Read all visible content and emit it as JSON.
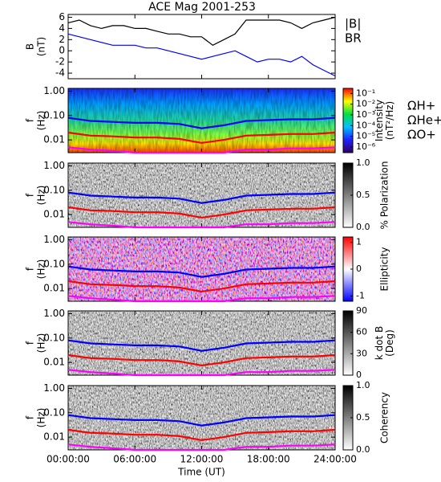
{
  "chart_data": [
    {
      "type": "line",
      "title": "ACE Mag 2001-253",
      "ylabel": [
        "B",
        "(nT)"
      ],
      "x": [
        0,
        1,
        2,
        3,
        4,
        5,
        6,
        7,
        8,
        9,
        10,
        11,
        12,
        13,
        14,
        15,
        16,
        17,
        18,
        19,
        20,
        21,
        22,
        23,
        24
      ],
      "xlim": [
        0,
        24
      ],
      "xticks": [
        0,
        6,
        12,
        18,
        24
      ],
      "ylim": [
        -5,
        6.5
      ],
      "yticks": [
        -4,
        -2,
        0,
        2,
        4,
        6
      ],
      "series": [
        {
          "name": "|B|",
          "color": "#000000",
          "values": [
            5,
            5.5,
            4.5,
            4,
            4.5,
            4.5,
            4,
            4,
            3.5,
            3,
            3,
            2.5,
            2.5,
            1,
            2,
            3,
            5.5,
            5.5,
            5.5,
            5.5,
            5,
            4,
            5,
            5.5,
            6
          ]
        },
        {
          "name": "BR",
          "color": "#0000ff",
          "values": [
            3,
            2.5,
            2,
            1.5,
            1,
            1,
            1,
            0.5,
            0.5,
            0,
            -0.5,
            -1,
            -1.5,
            -1,
            -0.5,
            0,
            -1,
            -2,
            -1.5,
            -1.5,
            -2,
            -1,
            -2.5,
            -3.5,
            -4.5
          ]
        }
      ]
    },
    {
      "type": "spectrogram",
      "ylabel": [
        "f",
        "(Hz)"
      ],
      "ylog": true,
      "x": [
        0,
        2,
        4,
        6,
        8,
        10,
        12,
        14,
        16,
        18,
        20,
        22,
        24
      ],
      "xlim": [
        0,
        24
      ],
      "xticks": [
        0,
        6,
        12,
        18,
        24
      ],
      "ylim": [
        0.003,
        1.3
      ],
      "yticks": [
        {
          "value": 0.01,
          "label": "0.01"
        },
        {
          "value": 0.1,
          "label": "0.10"
        },
        {
          "value": 1,
          "label": "1.00"
        }
      ],
      "colorbar": {
        "label": [
          "Intensity",
          "(nT²/Hz)"
        ],
        "colormap": "rainbow",
        "log": true,
        "clim": [
          3e-07,
          0.3
        ],
        "ticks": [
          {
            "value": 0.1,
            "label": "10⁻¹"
          },
          {
            "value": 0.01,
            "label": "10⁻²"
          },
          {
            "value": 0.001,
            "label": "10⁻³"
          },
          {
            "value": 0.0001,
            "label": "10⁻⁴"
          },
          {
            "value": 1e-05,
            "label": "10⁻⁵"
          },
          {
            "value": 1e-06,
            "label": "10⁻⁶"
          }
        ]
      },
      "series": [
        {
          "name": "ΩH+",
          "color": "#0000ff",
          "values": [
            0.08,
            0.06,
            0.055,
            0.05,
            0.05,
            0.045,
            0.03,
            0.04,
            0.06,
            0.065,
            0.07,
            0.07,
            0.08
          ]
        },
        {
          "name": "ΩHe+",
          "color": "#ff0000",
          "values": [
            0.02,
            0.015,
            0.014,
            0.0125,
            0.0125,
            0.011,
            0.0075,
            0.01,
            0.015,
            0.016,
            0.0175,
            0.0175,
            0.02
          ]
        },
        {
          "name": "ΩO+",
          "color": "#ff00ff",
          "values": [
            0.005,
            0.004,
            0.0035,
            0.003,
            0.003,
            0.003,
            0.003,
            0.003,
            0.004,
            0.004,
            0.0045,
            0.0045,
            0.005
          ]
        }
      ]
    },
    {
      "type": "spectrogram",
      "ylabel": [
        "f",
        "(Hz)"
      ],
      "ylog": true,
      "x": [
        0,
        2,
        4,
        6,
        8,
        10,
        12,
        14,
        16,
        18,
        20,
        22,
        24
      ],
      "xlim": [
        0,
        24
      ],
      "xticks": [
        0,
        6,
        12,
        18,
        24
      ],
      "ylim": [
        0.003,
        1.3
      ],
      "yticks": [
        {
          "value": 0.01,
          "label": "0.01"
        },
        {
          "value": 0.1,
          "label": "0.10"
        },
        {
          "value": 1,
          "label": "1.00"
        }
      ],
      "colorbar": {
        "label": [
          "% Polarization"
        ],
        "colormap": "gray",
        "clim": [
          0,
          1
        ],
        "ticks": [
          {
            "value": 0,
            "label": "0.0"
          },
          0.5,
          {
            "value": 1,
            "label": "1.0"
          }
        ]
      },
      "series": [
        {
          "color": "#0000ff",
          "values": [
            0.08,
            0.06,
            0.055,
            0.05,
            0.05,
            0.045,
            0.03,
            0.04,
            0.06,
            0.065,
            0.07,
            0.07,
            0.08
          ]
        },
        {
          "color": "#ff0000",
          "values": [
            0.02,
            0.015,
            0.014,
            0.0125,
            0.0125,
            0.011,
            0.0075,
            0.01,
            0.015,
            0.016,
            0.0175,
            0.0175,
            0.02
          ]
        },
        {
          "color": "#ff00ff",
          "values": [
            0.005,
            0.004,
            0.0035,
            0.003,
            0.003,
            0.003,
            0.003,
            0.003,
            0.004,
            0.004,
            0.0045,
            0.0045,
            0.005
          ]
        }
      ]
    },
    {
      "type": "spectrogram",
      "ylabel": [
        "f",
        "(Hz)"
      ],
      "ylog": true,
      "x": [
        0,
        2,
        4,
        6,
        8,
        10,
        12,
        14,
        16,
        18,
        20,
        22,
        24
      ],
      "xlim": [
        0,
        24
      ],
      "xticks": [
        0,
        6,
        12,
        18,
        24
      ],
      "ylim": [
        0.003,
        1.3
      ],
      "yticks": [
        {
          "value": 0.01,
          "label": "0.01"
        },
        {
          "value": 0.1,
          "label": "0.10"
        },
        {
          "value": 1,
          "label": "1.00"
        }
      ],
      "colorbar": {
        "label": [
          "Ellipticity"
        ],
        "colormap": "redblue",
        "clim": [
          -1.2,
          1.2
        ],
        "ticks": [
          -1,
          0,
          1
        ]
      },
      "series": [
        {
          "color": "#0000ff",
          "values": [
            0.08,
            0.06,
            0.055,
            0.05,
            0.05,
            0.045,
            0.03,
            0.04,
            0.06,
            0.065,
            0.07,
            0.07,
            0.08
          ]
        },
        {
          "color": "#ff0000",
          "values": [
            0.02,
            0.015,
            0.014,
            0.0125,
            0.0125,
            0.011,
            0.0075,
            0.01,
            0.015,
            0.016,
            0.0175,
            0.0175,
            0.02
          ]
        },
        {
          "color": "#ff00ff",
          "values": [
            0.005,
            0.004,
            0.0035,
            0.003,
            0.003,
            0.003,
            0.003,
            0.003,
            0.004,
            0.004,
            0.0045,
            0.0045,
            0.005
          ]
        }
      ]
    },
    {
      "type": "spectrogram",
      "ylabel": [
        "f",
        "(Hz)"
      ],
      "ylog": true,
      "x": [
        0,
        2,
        4,
        6,
        8,
        10,
        12,
        14,
        16,
        18,
        20,
        22,
        24
      ],
      "xlim": [
        0,
        24
      ],
      "xticks": [
        0,
        6,
        12,
        18,
        24
      ],
      "ylim": [
        0.003,
        1.3
      ],
      "yticks": [
        {
          "value": 0.01,
          "label": "0.01"
        },
        {
          "value": 0.1,
          "label": "0.10"
        },
        {
          "value": 1,
          "label": "1.00"
        }
      ],
      "colorbar": {
        "label": [
          "k dot B",
          "(Deg)"
        ],
        "colormap": "gray",
        "clim": [
          0,
          90
        ],
        "ticks": [
          0,
          30,
          60,
          90
        ]
      },
      "series": [
        {
          "color": "#0000ff",
          "values": [
            0.08,
            0.06,
            0.055,
            0.05,
            0.05,
            0.045,
            0.03,
            0.04,
            0.06,
            0.065,
            0.07,
            0.07,
            0.08
          ]
        },
        {
          "color": "#ff0000",
          "values": [
            0.02,
            0.015,
            0.014,
            0.0125,
            0.0125,
            0.011,
            0.0075,
            0.01,
            0.015,
            0.016,
            0.0175,
            0.0175,
            0.02
          ]
        },
        {
          "color": "#ff00ff",
          "values": [
            0.005,
            0.004,
            0.0035,
            0.003,
            0.003,
            0.003,
            0.003,
            0.003,
            0.004,
            0.004,
            0.0045,
            0.0045,
            0.005
          ]
        }
      ]
    },
    {
      "type": "spectrogram",
      "ylabel": [
        "f",
        "(Hz)"
      ],
      "ylog": true,
      "xlabel": "Time (UT)",
      "x": [
        0,
        2,
        4,
        6,
        8,
        10,
        12,
        14,
        16,
        18,
        20,
        22,
        24
      ],
      "xlim": [
        0,
        24
      ],
      "xticks": [
        {
          "value": 0,
          "label": "00:00:00"
        },
        {
          "value": 6,
          "label": "06:00:00"
        },
        {
          "value": 12,
          "label": "12:00:00"
        },
        {
          "value": 18,
          "label": "18:00:00"
        },
        {
          "value": 24,
          "label": "24:00:00"
        }
      ],
      "ylim": [
        0.003,
        1.3
      ],
      "yticks": [
        {
          "value": 0.01,
          "label": "0.01"
        },
        {
          "value": 0.1,
          "label": "0.10"
        },
        {
          "value": 1,
          "label": "1.00"
        }
      ],
      "colorbar": {
        "label": [
          "Coherency"
        ],
        "colormap": "gray",
        "clim": [
          0,
          1
        ],
        "ticks": [
          {
            "value": 0,
            "label": "0.0"
          },
          0.5,
          {
            "value": 1,
            "label": "1.0"
          }
        ]
      },
      "series": [
        {
          "color": "#0000ff",
          "values": [
            0.08,
            0.06,
            0.055,
            0.05,
            0.05,
            0.045,
            0.03,
            0.04,
            0.06,
            0.065,
            0.07,
            0.07,
            0.08
          ]
        },
        {
          "color": "#ff0000",
          "values": [
            0.02,
            0.015,
            0.014,
            0.0125,
            0.0125,
            0.011,
            0.0075,
            0.01,
            0.015,
            0.016,
            0.0175,
            0.0175,
            0.02
          ]
        },
        {
          "color": "#ff00ff",
          "values": [
            0.005,
            0.004,
            0.0035,
            0.003,
            0.003,
            0.003,
            0.003,
            0.003,
            0.004,
            0.004,
            0.0045,
            0.0045,
            0.005
          ]
        }
      ]
    }
  ]
}
